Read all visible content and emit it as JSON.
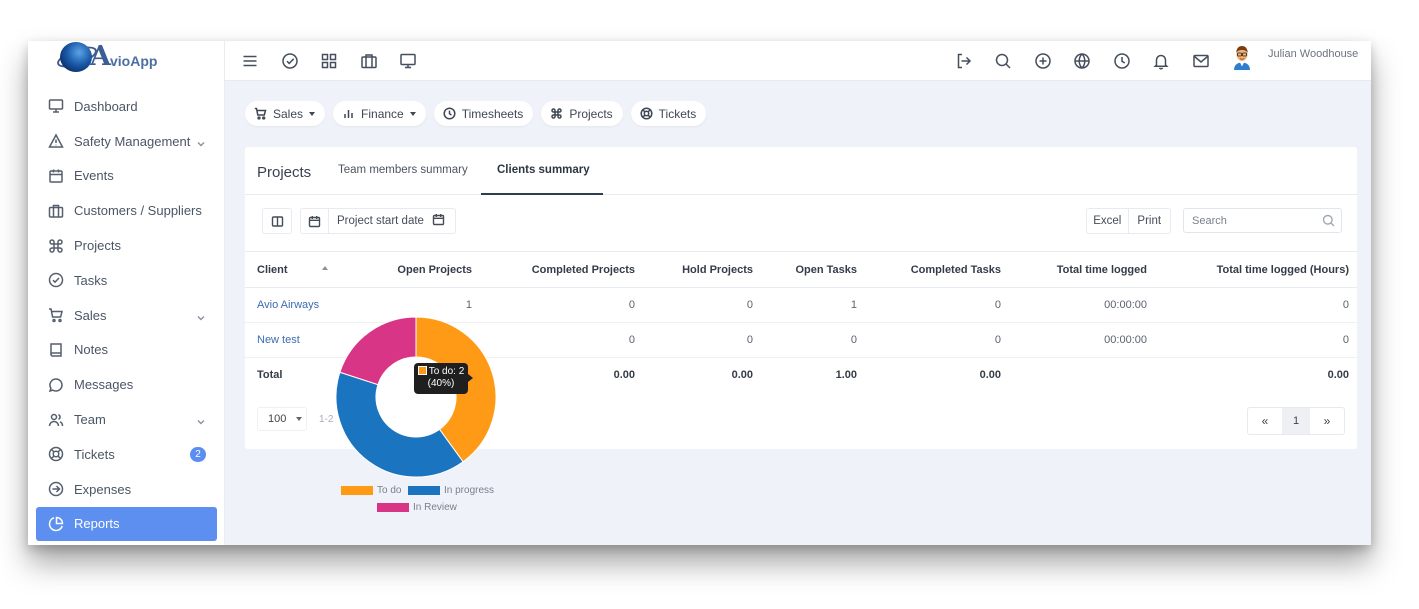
{
  "app": {
    "logo_letter": "A",
    "logo_rest": "vioApp"
  },
  "sidebar": {
    "items": [
      {
        "label": "Dashboard",
        "icon": "monitor-icon"
      },
      {
        "label": "Safety Management",
        "icon": "warning-icon",
        "has_chevron": true
      },
      {
        "label": "Events",
        "icon": "calendar-icon"
      },
      {
        "label": "Customers / Suppliers",
        "icon": "briefcase-icon"
      },
      {
        "label": "Projects",
        "icon": "command-icon"
      },
      {
        "label": "Tasks",
        "icon": "check-circle-icon"
      },
      {
        "label": "Sales",
        "icon": "cart-icon",
        "has_chevron": true
      },
      {
        "label": "Notes",
        "icon": "book-icon"
      },
      {
        "label": "Messages",
        "icon": "chat-icon"
      },
      {
        "label": "Team",
        "icon": "users-icon",
        "has_chevron": true
      },
      {
        "label": "Tickets",
        "icon": "lifebuoy-icon",
        "badge": "2"
      },
      {
        "label": "Expenses",
        "icon": "arrow-circle-icon"
      },
      {
        "label": "Reports",
        "icon": "pie-chart-icon",
        "active": true
      }
    ]
  },
  "header": {
    "user_name": "Julian Woodhouse"
  },
  "filters": [
    {
      "label": "Sales",
      "icon": "cart-icon",
      "dropdown": true
    },
    {
      "label": "Finance",
      "icon": "bar-chart-icon",
      "dropdown": true
    },
    {
      "label": "Timesheets",
      "icon": "clock-icon"
    },
    {
      "label": "Projects",
      "icon": "command-icon"
    },
    {
      "label": "Tickets",
      "icon": "lifebuoy-icon"
    }
  ],
  "card": {
    "title": "Projects",
    "tabs": [
      "Team members summary",
      "Clients summary"
    ],
    "active_tab": "Clients summary",
    "date_filter_label": "Project start date",
    "excel_label": "Excel",
    "print_label": "Print",
    "search_placeholder": "Search"
  },
  "table": {
    "columns": [
      "Client",
      "Open Projects",
      "Completed Projects",
      "Hold Projects",
      "Open Tasks",
      "Completed Tasks",
      "Total time logged",
      "Total time logged (Hours)"
    ],
    "rows": [
      [
        "Avio Airways",
        "1",
        "0",
        "0",
        "1",
        "0",
        "00:00:00",
        "0"
      ],
      [
        "New test",
        "",
        "0",
        "0",
        "0",
        "0",
        "00:00:00",
        "0"
      ]
    ],
    "total": [
      "Total",
      "",
      "0.00",
      "0.00",
      "1.00",
      "0.00",
      "",
      "0.00"
    ]
  },
  "pagination": {
    "page_size": "100",
    "range_text": "1-2",
    "current_page": "1",
    "prev": "«",
    "next": "»"
  },
  "chart_data": {
    "type": "pie",
    "categories": [
      "To do",
      "In progress",
      "In Review"
    ],
    "values": [
      2,
      2,
      1
    ],
    "colors": [
      "#ff9a16",
      "#1b74bf",
      "#d93586"
    ],
    "tooltip": {
      "line1": "To do: 2",
      "line2": "(40%)"
    }
  }
}
